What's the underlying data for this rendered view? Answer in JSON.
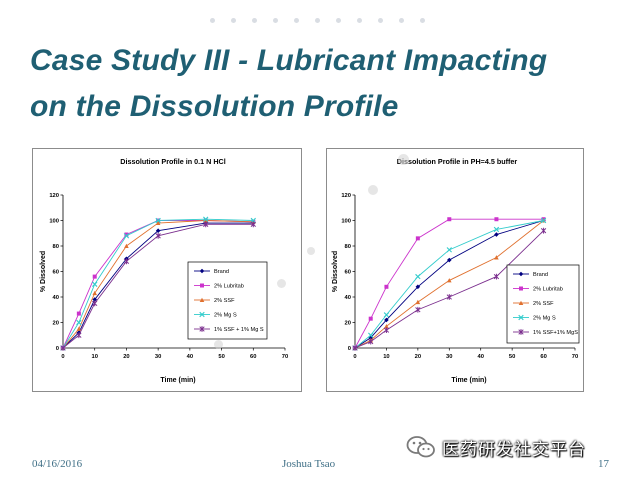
{
  "slide": {
    "title_line1": "Case Study III - Lubricant Impacting",
    "title_line2": "on the Dissolution Profile",
    "footer_date": "04/16/2016",
    "footer_author": "Joshua Tsao",
    "footer_page": "17",
    "watermark_text": "医药研发社交平台",
    "title_color": "#1f5f73"
  },
  "chart_data": [
    {
      "type": "line",
      "title": "Dissolution Profile in 0.1 N HCl",
      "xlabel": "Time (min)",
      "ylabel": "% Dissolved",
      "xlim": [
        0,
        70
      ],
      "ylim": [
        0,
        120
      ],
      "xticks": [
        0,
        10,
        20,
        30,
        40,
        50,
        60,
        70
      ],
      "yticks": [
        0,
        20,
        40,
        60,
        80,
        100,
        120
      ],
      "legend": "center-right",
      "grid": false,
      "x": [
        0,
        5,
        10,
        20,
        30,
        45,
        60
      ],
      "series": [
        {
          "name": "Brand",
          "color": "#000080",
          "marker": "diamond",
          "values": [
            0,
            12,
            38,
            70,
            92,
            98,
            98
          ]
        },
        {
          "name": "2% Lubritab",
          "color": "#cc33cc",
          "marker": "square",
          "values": [
            0,
            27,
            56,
            89,
            100,
            100,
            99
          ]
        },
        {
          "name": "2% SSF",
          "color": "#e0702e",
          "marker": "triangle",
          "values": [
            0,
            15,
            43,
            80,
            98,
            100,
            99
          ]
        },
        {
          "name": "2% Mg S",
          "color": "#33cccc",
          "marker": "x",
          "values": [
            0,
            20,
            50,
            88,
            100,
            101,
            100
          ]
        },
        {
          "name": "1% SSF + 1% Mg S",
          "color": "#7b2f8e",
          "marker": "star",
          "values": [
            0,
            10,
            35,
            68,
            88,
            97,
            97
          ]
        }
      ]
    },
    {
      "type": "line",
      "title": "Dissolution Profile in PH=4.5 buffer",
      "xlabel": "Time (min)",
      "ylabel": "% Dissolved",
      "xlim": [
        0,
        70
      ],
      "ylim": [
        0,
        120
      ],
      "xticks": [
        0,
        10,
        20,
        30,
        40,
        50,
        60,
        70
      ],
      "yticks": [
        0,
        20,
        40,
        60,
        80,
        100,
        120
      ],
      "legend": "lower-right",
      "grid": false,
      "x": [
        0,
        5,
        10,
        20,
        30,
        45,
        60
      ],
      "series": [
        {
          "name": "Brand",
          "color": "#000080",
          "marker": "diamond",
          "values": [
            0,
            8,
            22,
            48,
            69,
            89,
            100
          ]
        },
        {
          "name": "2% Lubritab",
          "color": "#cc33cc",
          "marker": "square",
          "values": [
            0,
            23,
            48,
            86,
            101,
            101,
            101
          ]
        },
        {
          "name": "2% SSF",
          "color": "#e0702e",
          "marker": "triangle",
          "values": [
            0,
            6,
            17,
            36,
            53,
            71,
            100
          ]
        },
        {
          "name": "2% Mg S",
          "color": "#33cccc",
          "marker": "x",
          "values": [
            0,
            10,
            26,
            56,
            77,
            93,
            100
          ]
        },
        {
          "name": "1% SSF+1% MgS",
          "color": "#7b2f8e",
          "marker": "star",
          "values": [
            0,
            5,
            14,
            30,
            40,
            56,
            92
          ]
        }
      ]
    }
  ]
}
